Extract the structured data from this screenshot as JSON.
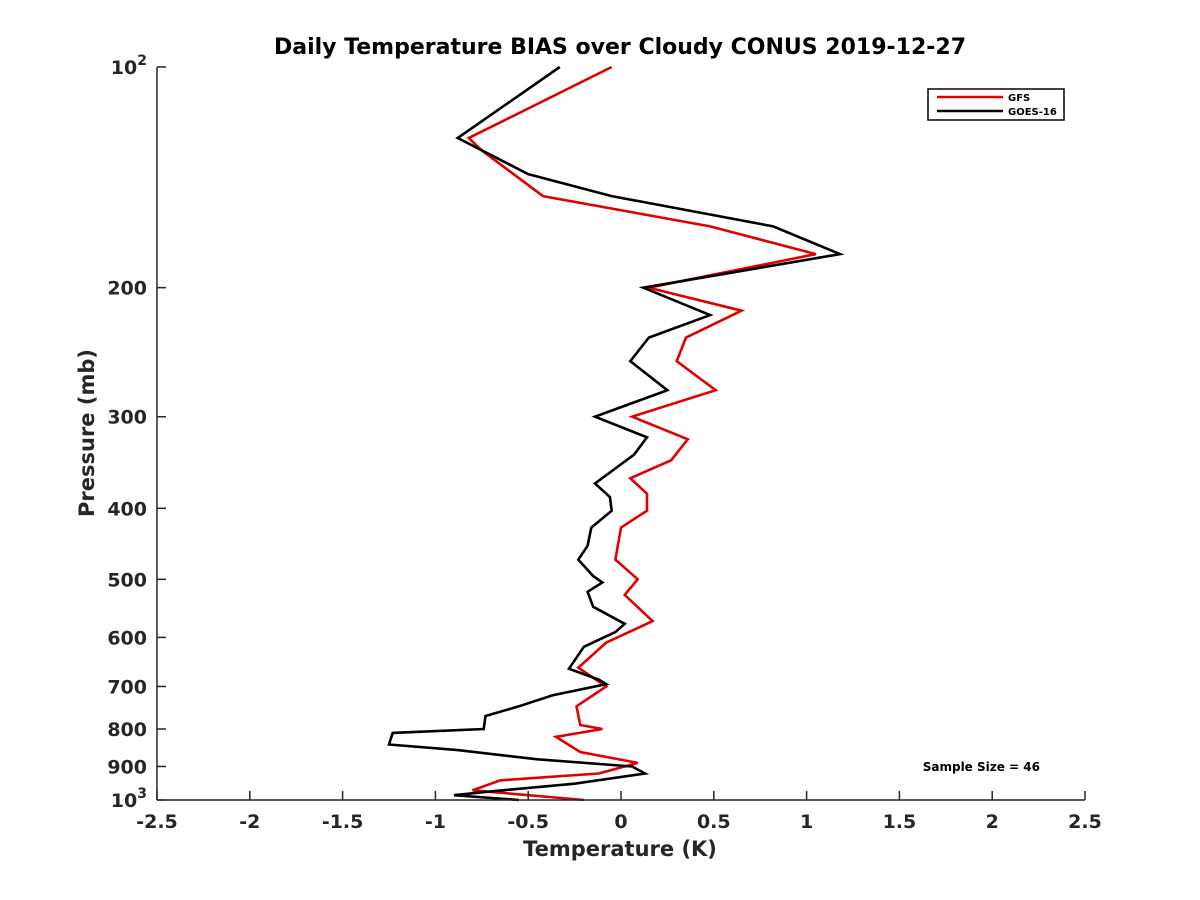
{
  "chart_data": {
    "type": "line",
    "title": "Daily Temperature BIAS over Cloudy CONUS 2019-12-27",
    "xlabel": "Temperature (K)",
    "ylabel": "Pressure (mb)",
    "xlim": [
      -2.5,
      2.5
    ],
    "ylim": [
      100,
      1000
    ],
    "y_scale": "log",
    "y_reversed": true,
    "x_ticks": [
      "-2.5",
      "-2",
      "-1.5",
      "-1",
      "-0.5",
      "0",
      "0.5",
      "1",
      "1.5",
      "2",
      "2.5"
    ],
    "x_tick_values": [
      -2.5,
      -2,
      -1.5,
      -1,
      -0.5,
      0,
      0.5,
      1,
      1.5,
      2,
      2.5
    ],
    "y_ticks": [
      {
        "value": 100,
        "base": "10",
        "exp": "2"
      },
      {
        "value": 200,
        "label": "200"
      },
      {
        "value": 300,
        "label": "300"
      },
      {
        "value": 400,
        "label": "400"
      },
      {
        "value": 500,
        "label": "500"
      },
      {
        "value": 600,
        "label": "600"
      },
      {
        "value": 700,
        "label": "700"
      },
      {
        "value": 800,
        "label": "800"
      },
      {
        "value": 900,
        "label": "900"
      },
      {
        "value": 1000,
        "base": "10",
        "exp": "3"
      }
    ],
    "legend_position": "top-right",
    "annotation": "Sample Size = 46",
    "grid": false,
    "series": [
      {
        "name": "GFS",
        "color": "#e00000",
        "points": [
          {
            "x": -0.05,
            "y": 100
          },
          {
            "x": -0.82,
            "y": 125
          },
          {
            "x": -0.75,
            "y": 130
          },
          {
            "x": -0.42,
            "y": 150
          },
          {
            "x": 0.48,
            "y": 165
          },
          {
            "x": 1.05,
            "y": 180
          },
          {
            "x": 0.15,
            "y": 200
          },
          {
            "x": 0.65,
            "y": 215
          },
          {
            "x": 0.35,
            "y": 234
          },
          {
            "x": 0.3,
            "y": 252
          },
          {
            "x": 0.51,
            "y": 276
          },
          {
            "x": 0.06,
            "y": 300
          },
          {
            "x": 0.36,
            "y": 322
          },
          {
            "x": 0.27,
            "y": 344
          },
          {
            "x": 0.05,
            "y": 364
          },
          {
            "x": 0.14,
            "y": 382
          },
          {
            "x": 0.14,
            "y": 403
          },
          {
            "x": 0.0,
            "y": 425
          },
          {
            "x": -0.03,
            "y": 470
          },
          {
            "x": 0.09,
            "y": 500
          },
          {
            "x": 0.02,
            "y": 525
          },
          {
            "x": 0.17,
            "y": 570
          },
          {
            "x": -0.08,
            "y": 610
          },
          {
            "x": -0.23,
            "y": 660
          },
          {
            "x": -0.08,
            "y": 700
          },
          {
            "x": -0.24,
            "y": 745
          },
          {
            "x": -0.22,
            "y": 790
          },
          {
            "x": -0.1,
            "y": 800
          },
          {
            "x": -0.35,
            "y": 820
          },
          {
            "x": -0.22,
            "y": 860
          },
          {
            "x": 0.09,
            "y": 890
          },
          {
            "x": -0.12,
            "y": 920
          },
          {
            "x": -0.65,
            "y": 940
          },
          {
            "x": -0.8,
            "y": 970
          },
          {
            "x": -0.2,
            "y": 1000
          }
        ]
      },
      {
        "name": "GOES-16",
        "color": "#000000",
        "points": [
          {
            "x": -0.33,
            "y": 100
          },
          {
            "x": -0.88,
            "y": 125
          },
          {
            "x": -0.5,
            "y": 140
          },
          {
            "x": -0.05,
            "y": 150
          },
          {
            "x": 0.82,
            "y": 165
          },
          {
            "x": 1.18,
            "y": 180
          },
          {
            "x": 0.12,
            "y": 200
          },
          {
            "x": 0.48,
            "y": 218
          },
          {
            "x": 0.15,
            "y": 234
          },
          {
            "x": 0.05,
            "y": 252
          },
          {
            "x": 0.25,
            "y": 276
          },
          {
            "x": -0.14,
            "y": 300
          },
          {
            "x": 0.14,
            "y": 320
          },
          {
            "x": 0.07,
            "y": 338
          },
          {
            "x": -0.14,
            "y": 370
          },
          {
            "x": -0.06,
            "y": 386
          },
          {
            "x": -0.05,
            "y": 403
          },
          {
            "x": -0.16,
            "y": 425
          },
          {
            "x": -0.18,
            "y": 450
          },
          {
            "x": -0.23,
            "y": 470
          },
          {
            "x": -0.15,
            "y": 495
          },
          {
            "x": -0.1,
            "y": 505
          },
          {
            "x": -0.18,
            "y": 520
          },
          {
            "x": -0.15,
            "y": 545
          },
          {
            "x": 0.02,
            "y": 575
          },
          {
            "x": -0.03,
            "y": 590
          },
          {
            "x": -0.2,
            "y": 618
          },
          {
            "x": -0.28,
            "y": 662
          },
          {
            "x": -0.12,
            "y": 685
          },
          {
            "x": -0.08,
            "y": 695
          },
          {
            "x": -0.37,
            "y": 720
          },
          {
            "x": -0.55,
            "y": 745
          },
          {
            "x": -0.73,
            "y": 768
          },
          {
            "x": -0.74,
            "y": 800
          },
          {
            "x": -1.23,
            "y": 810
          },
          {
            "x": -1.25,
            "y": 840
          },
          {
            "x": -0.88,
            "y": 855
          },
          {
            "x": -0.45,
            "y": 880
          },
          {
            "x": 0.06,
            "y": 900
          },
          {
            "x": 0.13,
            "y": 920
          },
          {
            "x": -0.25,
            "y": 950
          },
          {
            "x": -0.73,
            "y": 975
          },
          {
            "x": -0.9,
            "y": 985
          },
          {
            "x": -0.55,
            "y": 1000
          }
        ]
      }
    ]
  }
}
